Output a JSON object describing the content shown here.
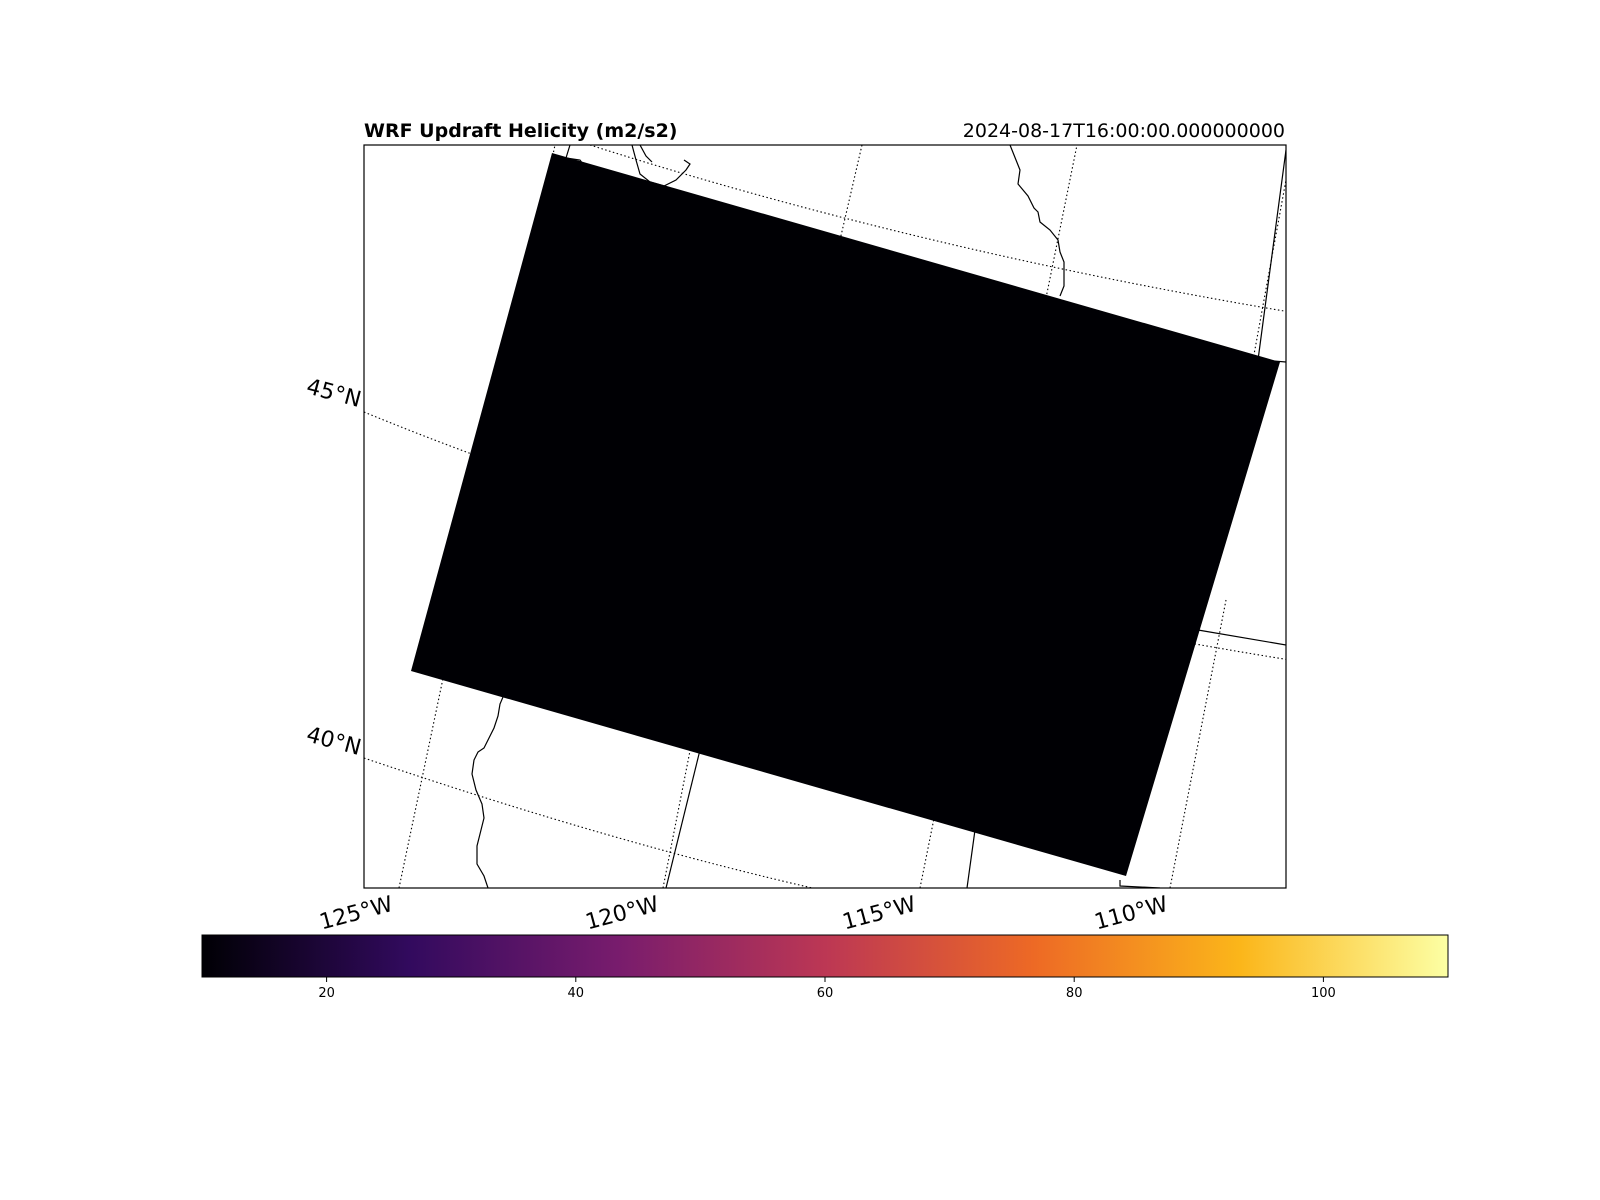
{
  "title": "WRF Updraft Helicity (m2/s2)",
  "valid_time": "2024-08-17T16:00:00.000000000",
  "lat_labels": [
    "45°N",
    "40°N"
  ],
  "lon_labels": [
    "125°W",
    "120°W",
    "115°W",
    "110°W"
  ],
  "field_fill_color": "#000004",
  "colorbar": {
    "cmap": "inferno",
    "vmin": 10,
    "vmax": 110,
    "stops": [
      "#000004",
      "#320a5e",
      "#781c6d",
      "#bc3754",
      "#ed6925",
      "#fbb61a",
      "#fcffa4"
    ],
    "ticks": [
      "20",
      "40",
      "60",
      "80",
      "100"
    ]
  },
  "chart_data": {
    "type": "heatmap",
    "title": "WRF Updraft Helicity (m2/s2)",
    "valid_time": "2024-08-17T16:00:00.000000000",
    "variable": "Updraft Helicity",
    "units": "m2/s2",
    "field_value_displayed": "uniform at the colormap minimum (≈10 m2/s2 or below) across the domain",
    "colorbar_range": [
      10,
      110
    ],
    "colorbar_ticks": [
      20,
      40,
      60,
      80,
      100
    ],
    "colormap": "inferno",
    "latitude_gridlines_labeled": [
      45,
      40
    ],
    "longitude_gridlines_labeled": [
      -125,
      -120,
      -115,
      -110
    ],
    "grid": true
  }
}
